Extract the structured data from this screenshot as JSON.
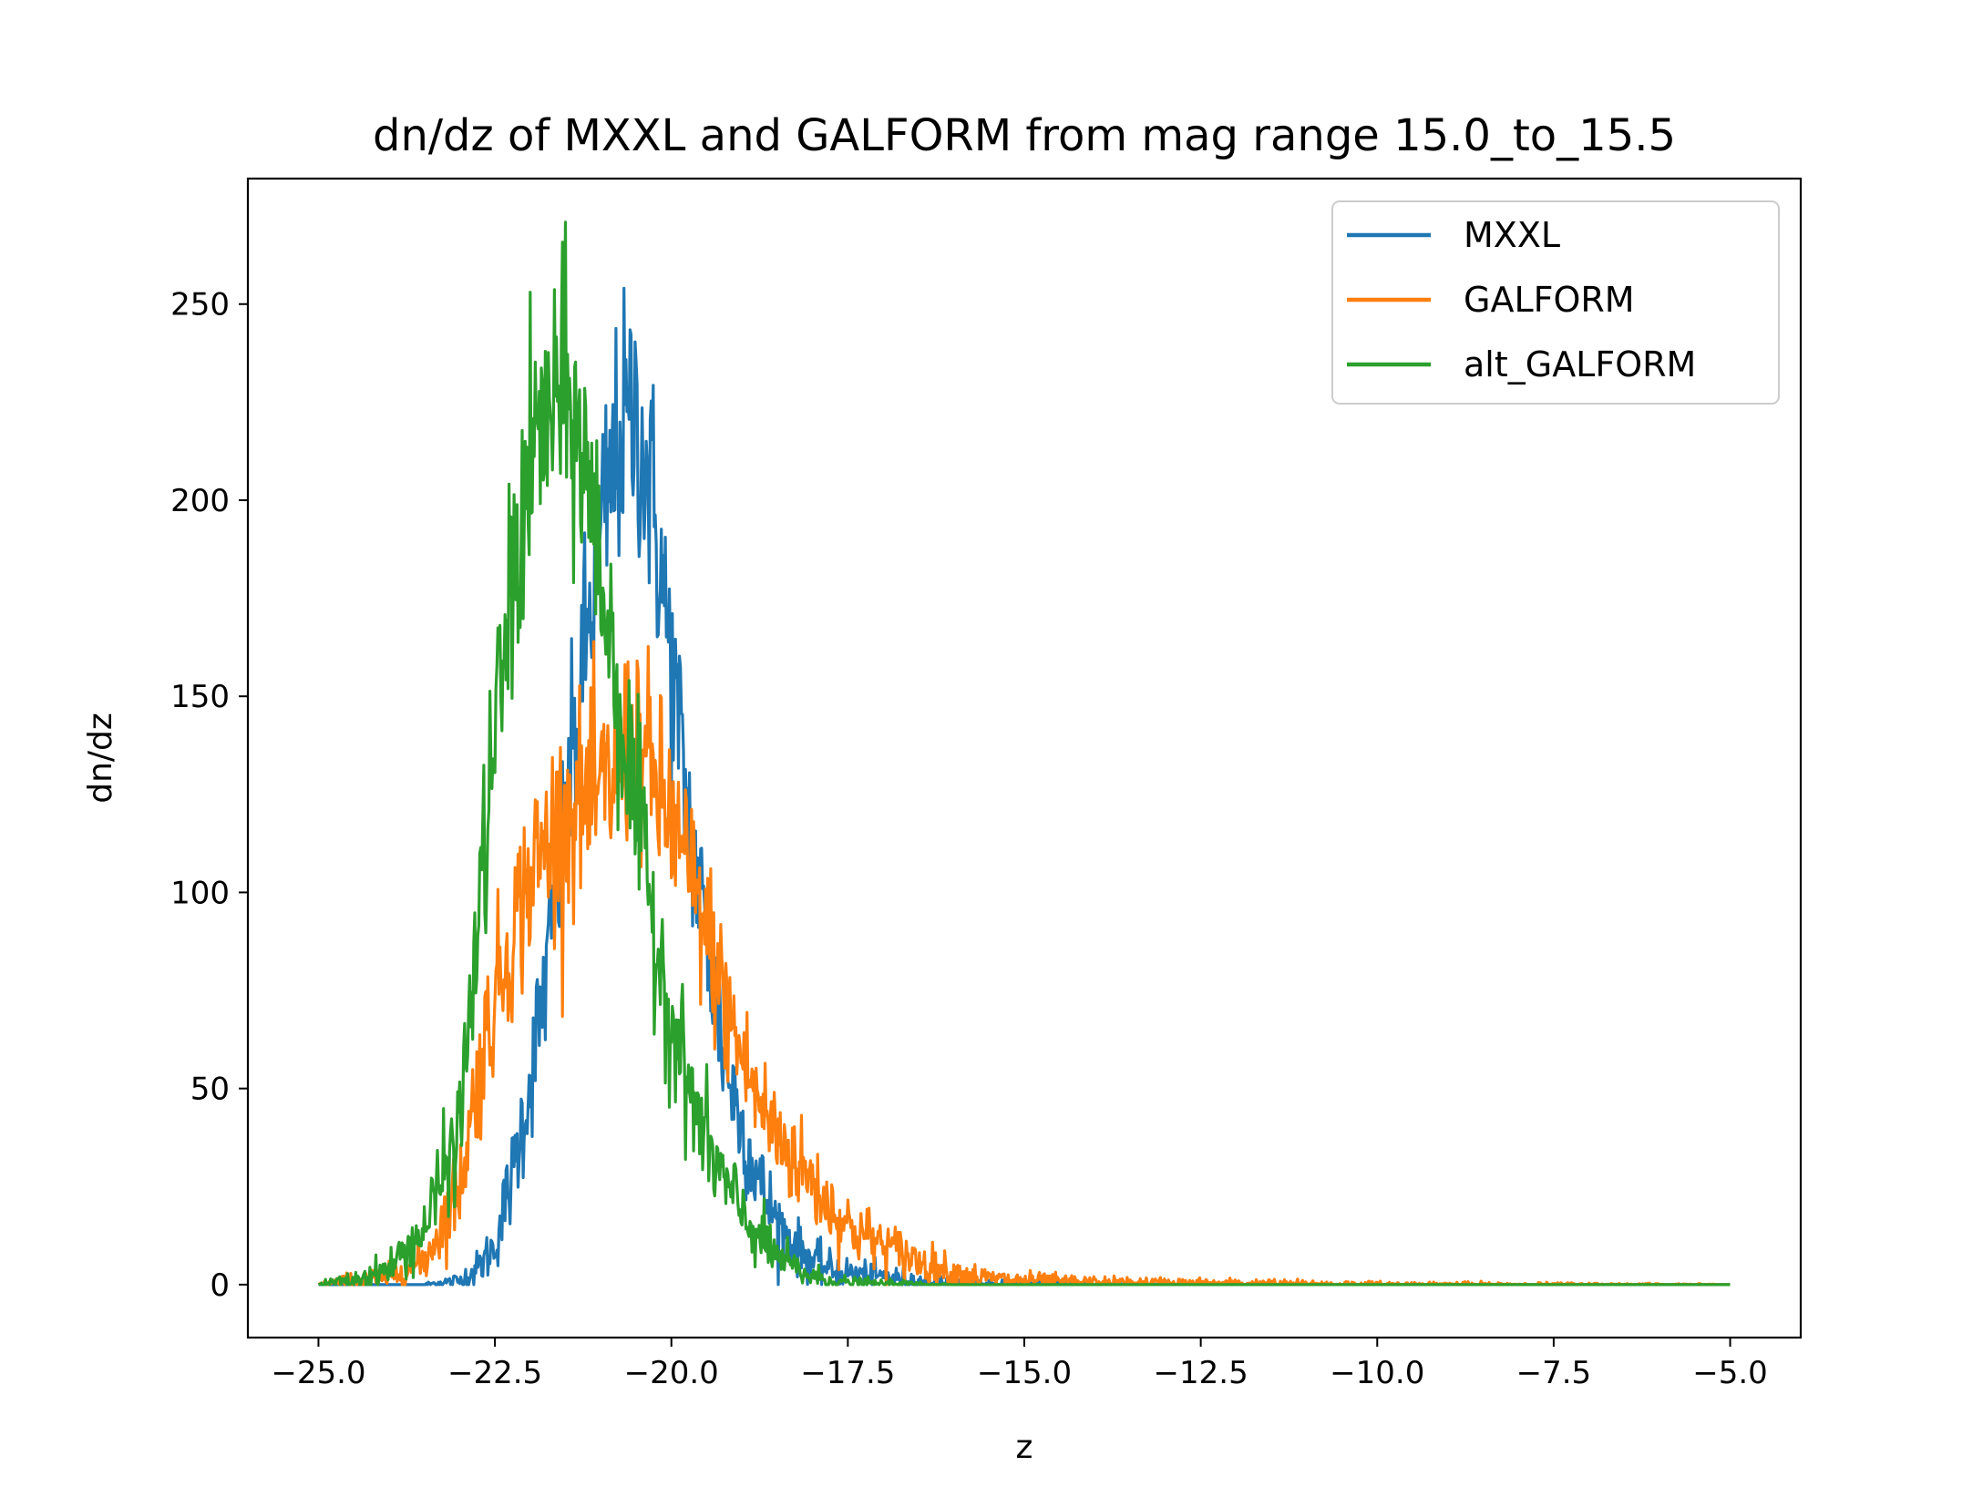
{
  "chart_data": {
    "type": "line",
    "title": "dn/dz of MXXL and GALFORM from mag range 15.0_to_15.5",
    "xlabel": "z",
    "ylabel": "dn/dz",
    "xlim": [
      -26.0,
      -4.0
    ],
    "ylim": [
      -13.5,
      282.0
    ],
    "xticks": [
      -25.0,
      -22.5,
      -20.0,
      -17.5,
      -15.0,
      -12.5,
      -10.0,
      -7.5,
      -5.0
    ],
    "xtick_labels": [
      "−25.0",
      "−22.5",
      "−20.0",
      "−17.5",
      "−15.0",
      "−12.5",
      "−10.0",
      "−7.5",
      "−5.0"
    ],
    "yticks": [
      0,
      50,
      100,
      150,
      200,
      250
    ],
    "ytick_labels": [
      "0",
      "50",
      "100",
      "150",
      "200",
      "250"
    ],
    "grid": false,
    "legend_position": "top-right",
    "x": [
      -25.0,
      -24.5,
      -24.0,
      -23.5,
      -23.0,
      -22.75,
      -22.5,
      -22.25,
      -22.0,
      -21.75,
      -21.5,
      -21.25,
      -21.0,
      -20.75,
      -20.5,
      -20.25,
      -20.0,
      -19.75,
      -19.5,
      -19.25,
      -19.0,
      -18.75,
      -18.5,
      -18.25,
      -18.0,
      -17.75,
      -17.5,
      -17.0,
      -16.5,
      -16.0,
      -15.5,
      -15.0,
      -14.0,
      -12.0,
      -10.0,
      -5.0
    ],
    "series": [
      {
        "name": "MXXL",
        "color": "#1f77b4",
        "values": [
          0,
          0,
          0,
          0,
          1,
          4,
          10,
          28,
          52,
          82,
          118,
          158,
          190,
          215,
          222,
          198,
          158,
          118,
          88,
          58,
          40,
          26,
          16,
          10,
          6,
          4,
          3,
          2,
          1,
          0.5,
          0.3,
          0.2,
          0.1,
          0,
          0,
          0
        ]
      },
      {
        "name": "GALFORM",
        "color": "#ff7f0e",
        "values": [
          0,
          1,
          2,
          6,
          25,
          52,
          74,
          90,
          104,
          113,
          120,
          123,
          124,
          132,
          140,
          128,
          118,
          104,
          90,
          72,
          58,
          46,
          38,
          32,
          26,
          20,
          15,
          10,
          6,
          3,
          1.5,
          1,
          0.5,
          0.3,
          0.1,
          0
        ]
      },
      {
        "name": "alt_GALFORM",
        "color": "#2ca02c",
        "values": [
          0,
          1,
          4,
          14,
          40,
          90,
          140,
          178,
          208,
          222,
          226,
          212,
          182,
          150,
          120,
          92,
          68,
          50,
          36,
          26,
          18,
          12,
          7,
          4,
          2,
          1,
          0.5,
          0.2,
          0.1,
          0,
          0,
          0,
          0,
          0,
          0,
          0
        ]
      }
    ]
  }
}
